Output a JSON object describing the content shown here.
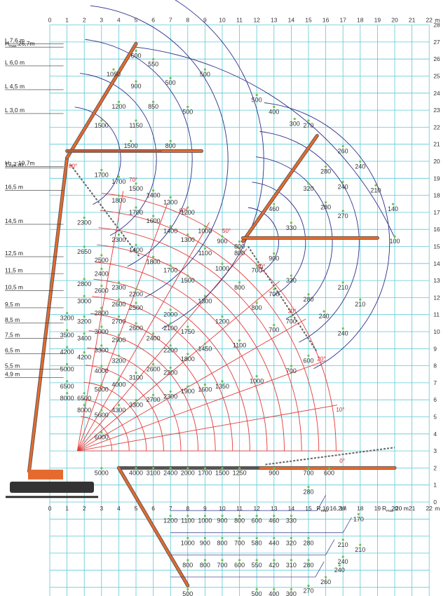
{
  "axes": {
    "x_top_ticks": [
      "0",
      "1",
      "2",
      "3",
      "4",
      "5",
      "6",
      "7",
      "8",
      "9",
      "10",
      "11",
      "12",
      "13",
      "14",
      "15",
      "16",
      "17",
      "18",
      "19",
      "20",
      "21",
      "22"
    ],
    "x_top_unit": "m",
    "x_bottom_ticks": [
      "0",
      "1",
      "2",
      "3",
      "4",
      "5",
      "6",
      "7",
      "8",
      "9",
      "10",
      "11",
      "12",
      "13",
      "14",
      "15",
      "16",
      "17",
      "18",
      "19",
      "20",
      "21",
      "22"
    ],
    "x_bottom_unit": "m",
    "y_ticks": [
      "0",
      "1",
      "2",
      "3",
      "4",
      "5",
      "6",
      "7",
      "8",
      "9",
      "10",
      "11",
      "12",
      "13",
      "14",
      "15",
      "16",
      "17",
      "18",
      "19",
      "20",
      "21",
      "22",
      "23",
      "24",
      "25",
      "26",
      "27",
      "28"
    ]
  },
  "height_labels": [
    {
      "text": "H",
      "sub": "max",
      "rest": ":26,7m",
      "y": 26.7
    },
    {
      "text": "L 7,6 m",
      "y": 26.9
    },
    {
      "text": "L 6,0 m",
      "y": 25.6
    },
    {
      "text": "L 4,5 m",
      "y": 24.2
    },
    {
      "text": "L 3,0 m",
      "y": 22.8
    },
    {
      "text": "H",
      "sub": "max",
      "rest": ":19,7m",
      "y": 19.7
    },
    {
      "text": "17,7 m",
      "y": 19.6
    },
    {
      "text": "16,5 m",
      "y": 18.3
    },
    {
      "text": "14,5 m",
      "y": 16.3
    },
    {
      "text": "12,5 m",
      "y": 14.4
    },
    {
      "text": "11,5 m",
      "y": 13.4
    },
    {
      "text": "10,5 m",
      "y": 12.4
    },
    {
      "text": "9,5 m",
      "y": 11.4
    },
    {
      "text": "8,5 m",
      "y": 10.5
    },
    {
      "text": "7,5 m",
      "y": 9.6
    },
    {
      "text": "6,5 m",
      "y": 8.7
    },
    {
      "text": "5,5 m",
      "y": 7.8
    },
    {
      "text": "4,9 m",
      "y": 7.3
    }
  ],
  "radius_labels": [
    {
      "text": "R",
      "sub": "max",
      "rest": ":16,2m",
      "x": 16.2
    },
    {
      "text": "R",
      "sub": "max",
      "rest": ":20 m",
      "x": 20.0
    }
  ],
  "angle_labels": [
    {
      "text": "80°",
      "x": 1.1,
      "y": 19.6
    },
    {
      "text": "70°",
      "x": 4.6,
      "y": 18.8
    },
    {
      "text": "60°",
      "x": 7.5,
      "y": 17.0
    },
    {
      "text": "50°",
      "x": 10.0,
      "y": 15.8
    },
    {
      "text": "40°",
      "x": 12.0,
      "y": 13.7
    },
    {
      "text": "30°",
      "x": 13.8,
      "y": 11.1
    },
    {
      "text": "20°",
      "x": 15.5,
      "y": 8.3
    },
    {
      "text": "10°",
      "x": 16.6,
      "y": 5.3
    },
    {
      "text": "0°",
      "x": 16.8,
      "y": 2.3
    }
  ],
  "load_values": [
    {
      "t": "600",
      "x": 5.0,
      "y": 26.2
    },
    {
      "t": "550",
      "x": 6.0,
      "y": 25.7
    },
    {
      "t": "500",
      "x": 9.0,
      "y": 25.1
    },
    {
      "t": "1050",
      "x": 3.7,
      "y": 25.1
    },
    {
      "t": "500",
      "x": 7.0,
      "y": 24.6
    },
    {
      "t": "900",
      "x": 5.0,
      "y": 24.4
    },
    {
      "t": "500",
      "x": 12.0,
      "y": 23.6
    },
    {
      "t": "1200",
      "x": 4.0,
      "y": 23.2
    },
    {
      "t": "850",
      "x": 6.0,
      "y": 23.2
    },
    {
      "t": "400",
      "x": 13.0,
      "y": 22.9
    },
    {
      "t": "500",
      "x": 8.0,
      "y": 22.9
    },
    {
      "t": "300",
      "x": 14.2,
      "y": 22.2
    },
    {
      "t": "270",
      "x": 15.0,
      "y": 22.1
    },
    {
      "t": "1500",
      "x": 3.0,
      "y": 22.1
    },
    {
      "t": "1150",
      "x": 5.0,
      "y": 22.1
    },
    {
      "t": "1500",
      "x": 4.7,
      "y": 20.9
    },
    {
      "t": "800",
      "x": 7.0,
      "y": 20.9
    },
    {
      "t": "260",
      "x": 17.0,
      "y": 20.6
    },
    {
      "t": "1700",
      "x": 3.0,
      "y": 19.2
    },
    {
      "t": "240",
      "x": 18.0,
      "y": 19.7
    },
    {
      "t": "280",
      "x": 16.0,
      "y": 19.4
    },
    {
      "t": "1700",
      "x": 4.0,
      "y": 18.8
    },
    {
      "t": "1500",
      "x": 5.0,
      "y": 18.4
    },
    {
      "t": "240",
      "x": 17.0,
      "y": 18.5
    },
    {
      "t": "320",
      "x": 15.0,
      "y": 18.4
    },
    {
      "t": "1400",
      "x": 6.0,
      "y": 18.0
    },
    {
      "t": "210",
      "x": 18.9,
      "y": 18.3
    },
    {
      "t": "1800",
      "x": 4.0,
      "y": 17.7
    },
    {
      "t": "1300",
      "x": 7.0,
      "y": 17.6
    },
    {
      "t": "280",
      "x": 16.0,
      "y": 17.3
    },
    {
      "t": "140",
      "x": 19.9,
      "y": 17.2
    },
    {
      "t": "1700",
      "x": 5.0,
      "y": 17.0
    },
    {
      "t": "1200",
      "x": 8.0,
      "y": 17.0
    },
    {
      "t": "460",
      "x": 13.0,
      "y": 17.2
    },
    {
      "t": "1600",
      "x": 6.0,
      "y": 16.5
    },
    {
      "t": "270",
      "x": 17.0,
      "y": 16.8
    },
    {
      "t": "2300",
      "x": 2.0,
      "y": 16.4
    },
    {
      "t": "1400",
      "x": 7.0,
      "y": 15.9
    },
    {
      "t": "1000",
      "x": 9.0,
      "y": 15.9
    },
    {
      "t": "330",
      "x": 14.0,
      "y": 16.1
    },
    {
      "t": "100",
      "x": 20.0,
      "y": 15.3
    },
    {
      "t": "2300",
      "x": 4.0,
      "y": 15.4
    },
    {
      "t": "1300",
      "x": 8.0,
      "y": 15.4
    },
    {
      "t": "900",
      "x": 10.0,
      "y": 15.3
    },
    {
      "t": "1400",
      "x": 5.0,
      "y": 14.8
    },
    {
      "t": "1100",
      "x": 9.0,
      "y": 14.6
    },
    {
      "t": "800",
      "x": 11.0,
      "y": 14.6
    },
    {
      "t": "2650",
      "x": 2.0,
      "y": 14.7
    },
    {
      "t": "1800",
      "x": 6.0,
      "y": 14.1
    },
    {
      "t": "2500",
      "x": 3.0,
      "y": 14.2
    },
    {
      "t": "1000",
      "x": 10.0,
      "y": 13.7
    },
    {
      "t": "700",
      "x": 12.0,
      "y": 13.6
    },
    {
      "t": "1700",
      "x": 7.0,
      "y": 13.6
    },
    {
      "t": "2400",
      "x": 3.0,
      "y": 13.4
    },
    {
      "t": "1500",
      "x": 8.0,
      "y": 13.0
    },
    {
      "t": "330",
      "x": 14.0,
      "y": 13.0
    },
    {
      "t": "2800",
      "x": 2.0,
      "y": 12.8
    },
    {
      "t": "2300",
      "x": 4.0,
      "y": 12.6
    },
    {
      "t": "800",
      "x": 11.0,
      "y": 12.6
    },
    {
      "t": "2600",
      "x": 3.0,
      "y": 12.4
    },
    {
      "t": "210",
      "x": 17.0,
      "y": 12.6
    },
    {
      "t": "2200",
      "x": 5.0,
      "y": 12.2
    },
    {
      "t": "700",
      "x": 13.0,
      "y": 12.2
    },
    {
      "t": "3000",
      "x": 2.0,
      "y": 11.8
    },
    {
      "t": "2600",
      "x": 4.0,
      "y": 11.6
    },
    {
      "t": "1300",
      "x": 9.0,
      "y": 11.8
    },
    {
      "t": "280",
      "x": 15.0,
      "y": 11.9
    },
    {
      "t": "2500",
      "x": 5.0,
      "y": 11.4
    },
    {
      "t": "800",
      "x": 12.0,
      "y": 11.4
    },
    {
      "t": "210",
      "x": 18.0,
      "y": 11.6
    },
    {
      "t": "2800",
      "x": 3.0,
      "y": 11.1
    },
    {
      "t": "2000",
      "x": 7.0,
      "y": 11.0
    },
    {
      "t": "3200",
      "x": 1.0,
      "y": 10.8
    },
    {
      "t": "3200",
      "x": 2.0,
      "y": 10.6
    },
    {
      "t": "2700",
      "x": 4.0,
      "y": 10.6
    },
    {
      "t": "1200",
      "x": 10.0,
      "y": 10.6
    },
    {
      "t": "700",
      "x": 14.0,
      "y": 10.6
    },
    {
      "t": "240",
      "x": 15.9,
      "y": 10.9
    },
    {
      "t": "2600",
      "x": 5.0,
      "y": 10.2
    },
    {
      "t": "700",
      "x": 13.0,
      "y": 10.1
    },
    {
      "t": "3000",
      "x": 3.0,
      "y": 10.0
    },
    {
      "t": "2100",
      "x": 7.0,
      "y": 10.2
    },
    {
      "t": "1750",
      "x": 8.0,
      "y": 10.0
    },
    {
      "t": "240",
      "x": 17.0,
      "y": 9.9
    },
    {
      "t": "3500",
      "x": 1.0,
      "y": 9.8
    },
    {
      "t": "3400",
      "x": 2.0,
      "y": 9.6
    },
    {
      "t": "2900",
      "x": 4.0,
      "y": 9.5
    },
    {
      "t": "2400",
      "x": 6.0,
      "y": 9.6
    },
    {
      "t": "1100",
      "x": 11.0,
      "y": 9.2
    },
    {
      "t": "3300",
      "x": 3.0,
      "y": 8.9
    },
    {
      "t": "2200",
      "x": 7.0,
      "y": 8.9
    },
    {
      "t": "4200",
      "x": 1.0,
      "y": 8.8
    },
    {
      "t": "4200",
      "x": 2.0,
      "y": 8.5
    },
    {
      "t": "1450",
      "x": 9.0,
      "y": 9.0
    },
    {
      "t": "600",
      "x": 15.0,
      "y": 8.3
    },
    {
      "t": "3200",
      "x": 4.0,
      "y": 8.3
    },
    {
      "t": "1800",
      "x": 8.0,
      "y": 8.4
    },
    {
      "t": "5000",
      "x": 1.0,
      "y": 7.8
    },
    {
      "t": "4000",
      "x": 3.0,
      "y": 7.7
    },
    {
      "t": "2600",
      "x": 6.0,
      "y": 7.8
    },
    {
      "t": "700",
      "x": 14.0,
      "y": 7.7
    },
    {
      "t": "3100",
      "x": 5.0,
      "y": 7.3
    },
    {
      "t": "2200",
      "x": 7.0,
      "y": 7.6
    },
    {
      "t": "4000",
      "x": 4.0,
      "y": 6.9
    },
    {
      "t": "1000",
      "x": 12.0,
      "y": 7.1
    },
    {
      "t": "6500",
      "x": 1.0,
      "y": 6.8
    },
    {
      "t": "5000",
      "x": 3.0,
      "y": 6.6
    },
    {
      "t": "1900",
      "x": 8.0,
      "y": 6.5
    },
    {
      "t": "1350",
      "x": 10.0,
      "y": 6.8
    },
    {
      "t": "8000",
      "x": 1.0,
      "y": 6.1
    },
    {
      "t": "6500",
      "x": 2.0,
      "y": 6.1
    },
    {
      "t": "2700",
      "x": 6.0,
      "y": 6.0
    },
    {
      "t": "1600",
      "x": 9.0,
      "y": 6.6
    },
    {
      "t": "2300",
      "x": 7.0,
      "y": 6.2
    },
    {
      "t": "3300",
      "x": 5.0,
      "y": 5.7
    },
    {
      "t": "8000",
      "x": 2.0,
      "y": 5.4
    },
    {
      "t": "4300",
      "x": 4.0,
      "y": 5.4
    },
    {
      "t": "5600",
      "x": 3.0,
      "y": 5.1
    },
    {
      "t": "6000",
      "x": 3.0,
      "y": 3.8
    },
    {
      "t": "5000",
      "x": 3.0,
      "y": 1.7
    },
    {
      "t": "4000",
      "x": 5.0,
      "y": 1.7
    },
    {
      "t": "3100",
      "x": 6.0,
      "y": 1.7
    },
    {
      "t": "2400",
      "x": 7.0,
      "y": 1.7
    },
    {
      "t": "2000",
      "x": 8.0,
      "y": 1.7
    },
    {
      "t": "1700",
      "x": 9.0,
      "y": 1.7
    },
    {
      "t": "1500",
      "x": 10.0,
      "y": 1.7
    },
    {
      "t": "1250",
      "x": 11.0,
      "y": 1.7
    },
    {
      "t": "900",
      "x": 13.0,
      "y": 1.7
    },
    {
      "t": "700",
      "x": 15.0,
      "y": 1.7
    },
    {
      "t": "600",
      "x": 16.2,
      "y": 1.7
    },
    {
      "t": "800",
      "x": 11.0,
      "y": 15.0
    },
    {
      "t": "900",
      "x": 13.0,
      "y": 14.3
    },
    {
      "t": "280",
      "x": 15.0,
      "y": 0.6
    },
    {
      "t": "1200",
      "x": 7.0,
      "y": -1.1
    },
    {
      "t": "1100",
      "x": 8.0,
      "y": -1.1
    },
    {
      "t": "1000",
      "x": 9.0,
      "y": -1.1
    },
    {
      "t": "900",
      "x": 10.0,
      "y": -1.1
    },
    {
      "t": "800",
      "x": 11.0,
      "y": -1.1
    },
    {
      "t": "600",
      "x": 12.0,
      "y": -1.1
    },
    {
      "t": "460",
      "x": 13.0,
      "y": -1.1
    },
    {
      "t": "330",
      "x": 14.0,
      "y": -1.1
    },
    {
      "t": "170",
      "x": 17.9,
      "y": -1.0
    },
    {
      "t": "1000",
      "x": 8.0,
      "y": -2.4
    },
    {
      "t": "900",
      "x": 9.0,
      "y": -2.4
    },
    {
      "t": "800",
      "x": 10.0,
      "y": -2.4
    },
    {
      "t": "700",
      "x": 11.0,
      "y": -2.4
    },
    {
      "t": "580",
      "x": 12.0,
      "y": -2.4
    },
    {
      "t": "440",
      "x": 13.0,
      "y": -2.4
    },
    {
      "t": "320",
      "x": 14.0,
      "y": -2.4
    },
    {
      "t": "280",
      "x": 15.0,
      "y": -2.4
    },
    {
      "t": "210",
      "x": 17.0,
      "y": -2.5
    },
    {
      "t": "210",
      "x": 18.0,
      "y": -2.8
    },
    {
      "t": "800",
      "x": 8.0,
      "y": -3.7
    },
    {
      "t": "800",
      "x": 9.0,
      "y": -3.7
    },
    {
      "t": "700",
      "x": 10.0,
      "y": -3.7
    },
    {
      "t": "600",
      "x": 11.0,
      "y": -3.7
    },
    {
      "t": "550",
      "x": 12.0,
      "y": -3.7
    },
    {
      "t": "420",
      "x": 13.0,
      "y": -3.7
    },
    {
      "t": "310",
      "x": 14.0,
      "y": -3.7
    },
    {
      "t": "280",
      "x": 15.0,
      "y": -3.7
    },
    {
      "t": "240",
      "x": 17.0,
      "y": -3.5
    },
    {
      "t": "240",
      "x": 16.8,
      "y": -4.0
    },
    {
      "t": "260",
      "x": 16.0,
      "y": -4.7
    },
    {
      "t": "500",
      "x": 8.0,
      "y": -5.4
    },
    {
      "t": "500",
      "x": 12.0,
      "y": -5.4
    },
    {
      "t": "400",
      "x": 13.0,
      "y": -5.4
    },
    {
      "t": "300",
      "x": 14.0,
      "y": -5.4
    },
    {
      "t": "270",
      "x": 15.0,
      "y": -5.2
    }
  ]
}
